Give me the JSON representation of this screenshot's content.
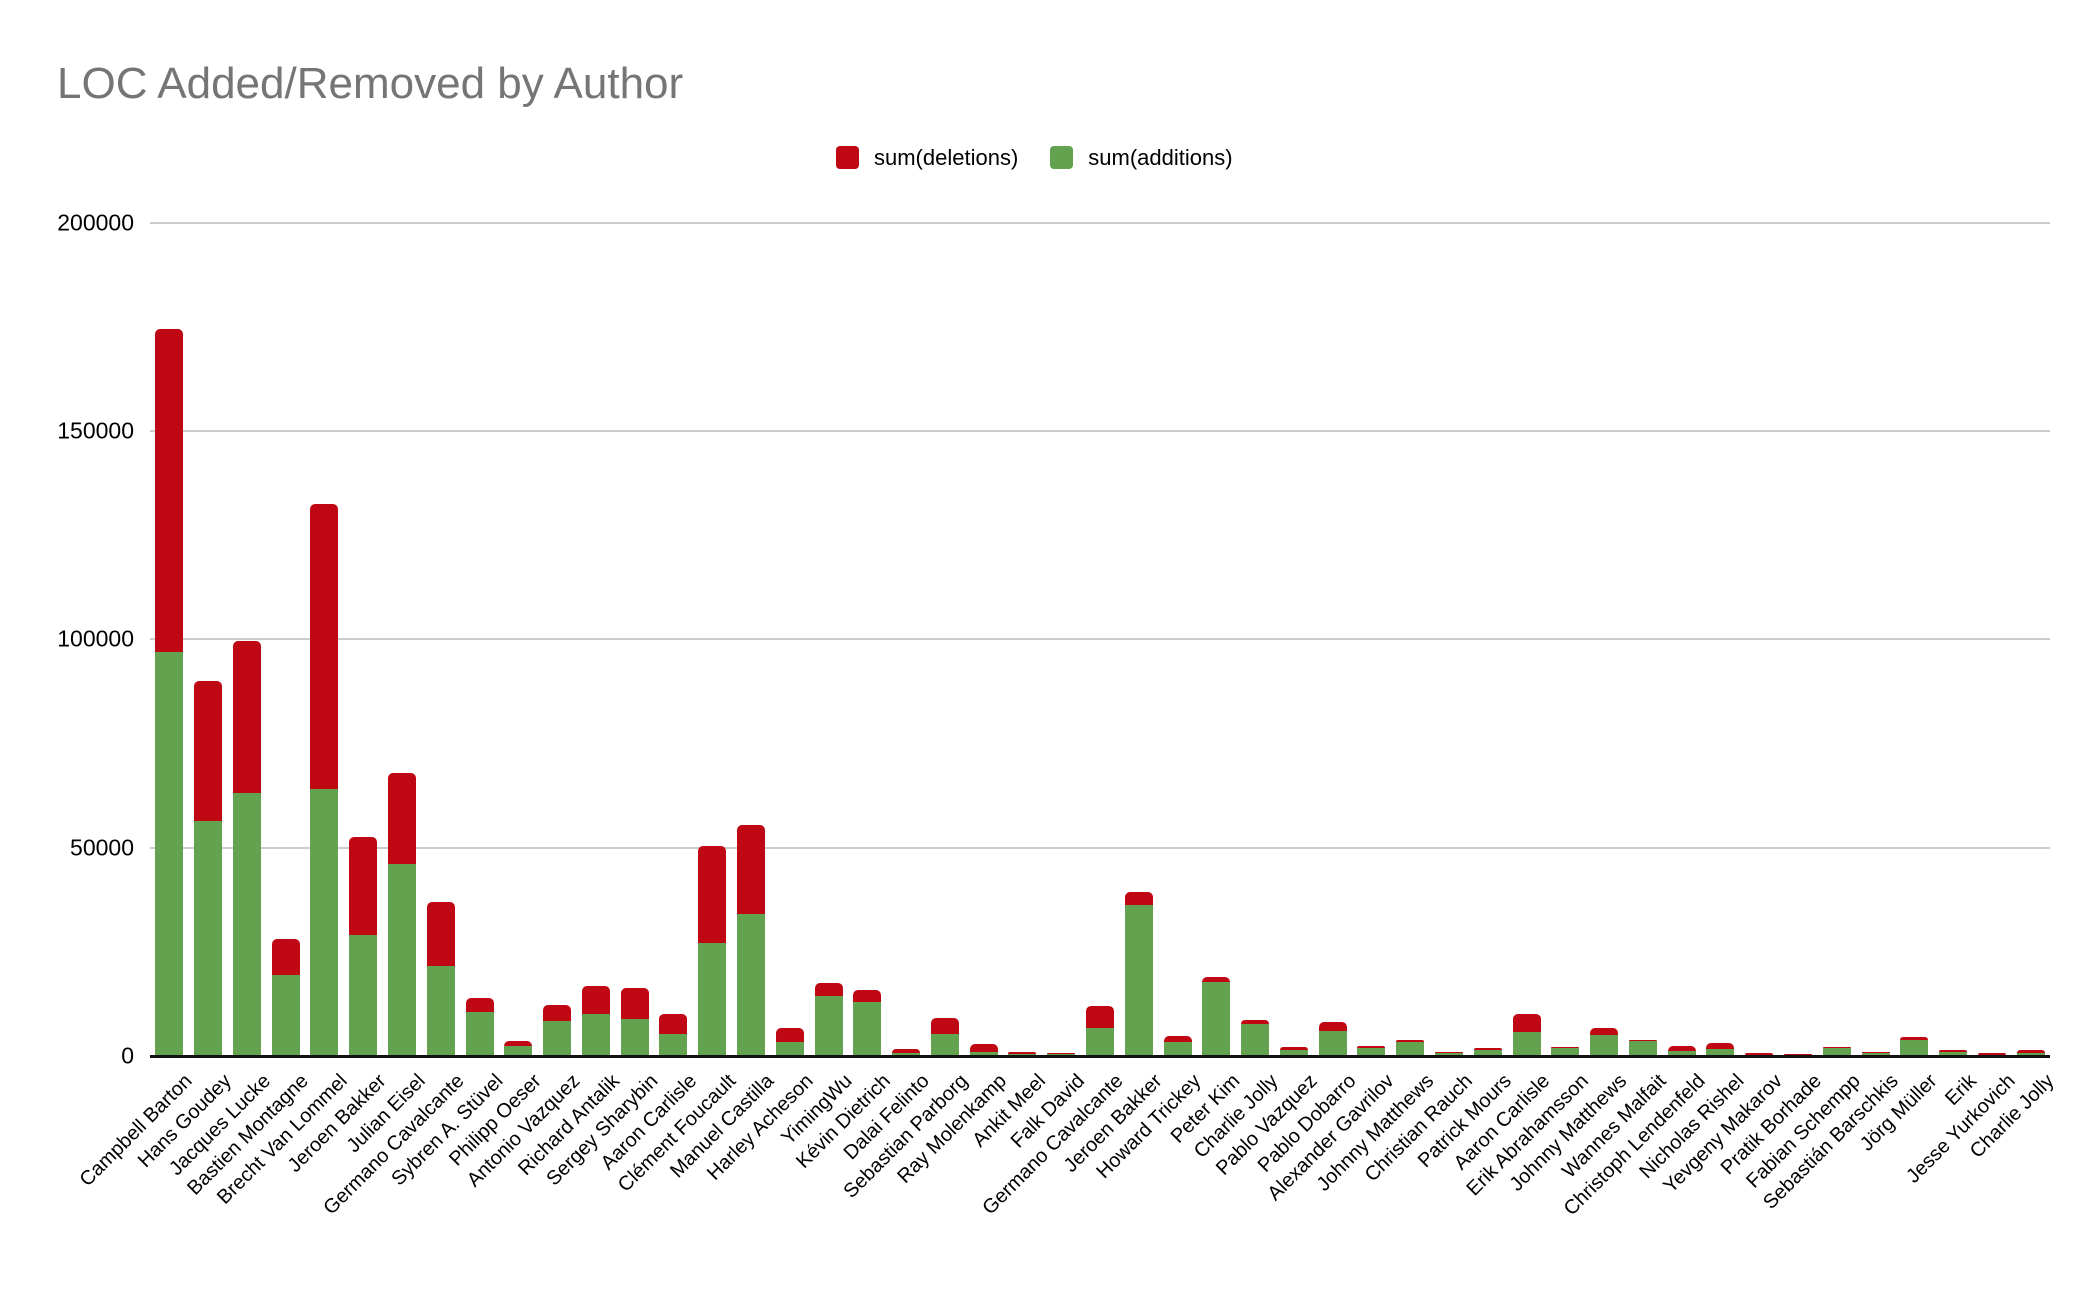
{
  "title": "LOC Added/Removed by Author",
  "legend": [
    {
      "label": "sum(deletions)",
      "color": "#c00714"
    },
    {
      "label": "sum(additions)",
      "color": "#63a24f"
    }
  ],
  "y_axis": {
    "tick_labels": [
      "0",
      "50000",
      "100000",
      "150000",
      "200000"
    ],
    "tick_values": [
      0,
      50000,
      100000,
      150000,
      200000
    ]
  },
  "colors": {
    "deletions": "#c00714",
    "additions": "#63a24f",
    "gridline": "#cccccc",
    "axis_line": "#111111",
    "title_text": "#757575",
    "label_text": "#000000",
    "background": "#ffffff"
  },
  "chart_data": {
    "type": "bar",
    "stacked": true,
    "title": "LOC Added/Removed by Author",
    "xlabel": "",
    "ylabel": "",
    "ylim": [
      0,
      200000
    ],
    "grid": true,
    "legend_position": "top-center",
    "stack_order": "additions bottom, deletions top",
    "categories": [
      "Campbell Barton",
      "Hans Goudey",
      "Jacques Lucke",
      "Bastien Montagne",
      "Brecht Van Lommel",
      "Jeroen Bakker",
      "Julian Eisel",
      "Germano Cavalcante",
      "Sybren A. Stüvel",
      "Philipp Oeser",
      "Antonio Vazquez",
      "Richard Antalik",
      "Sergey Sharybin",
      "Aaron Carlisle",
      "Clément Foucault",
      "Manuel Castilla",
      "Harley Acheson",
      "YimingWu",
      "Kévin Dietrich",
      "Dalai Felinto",
      "Sebastian Parborg",
      "Ray Molenkamp",
      "Ankit Meel",
      "Falk David",
      "Germano Cavalcante",
      "Jeroen Bakker",
      "Howard Trickey",
      "Peter Kim",
      "Charlie Jolly",
      "Pablo Vazquez",
      "Pablo Dobarro",
      "Alexander Gavrilov",
      "Johnny Matthews",
      "Christian Rauch",
      "Patrick Mours",
      "Aaron Carlisle",
      "Erik Abrahamsson",
      "Johnny Matthews",
      "Wannes Malfait",
      "Christoph Lendenfeld",
      "Nicholas Rishel",
      "Yevgeny Makarov",
      "Pratik Borhade",
      "Fabian Schempp",
      "Sebastián Barschkis",
      "Jörg Müller",
      "Erik",
      "Jesse Yurkovich",
      "Charlie Jolly"
    ],
    "series": [
      {
        "name": "sum(additions)",
        "color": "#63a24f",
        "values": [
          97000,
          56500,
          63000,
          19500,
          64000,
          29000,
          46000,
          21500,
          10500,
          2500,
          8500,
          10000,
          9000,
          5200,
          27000,
          34000,
          3300,
          14500,
          13000,
          800,
          5200,
          1000,
          400,
          550,
          6800,
          36300,
          3300,
          17800,
          7800,
          1400,
          6000,
          1850,
          3450,
          800,
          1400,
          5800,
          1900,
          5000,
          3600,
          1250,
          1800,
          200,
          100,
          1870,
          700,
          3900,
          900,
          300,
          650
        ]
      },
      {
        "name": "sum(deletions)",
        "color": "#c00714",
        "values": [
          77500,
          33500,
          36500,
          8500,
          68500,
          23500,
          22000,
          15500,
          3500,
          1000,
          3700,
          6800,
          7400,
          4800,
          23500,
          21500,
          3500,
          3000,
          2800,
          900,
          4000,
          1800,
          650,
          100,
          5200,
          3000,
          1500,
          1100,
          900,
          800,
          2200,
          550,
          350,
          100,
          600,
          4400,
          100,
          1800,
          100,
          1150,
          1400,
          500,
          100,
          100,
          100,
          550,
          500,
          500,
          850
        ]
      }
    ]
  }
}
